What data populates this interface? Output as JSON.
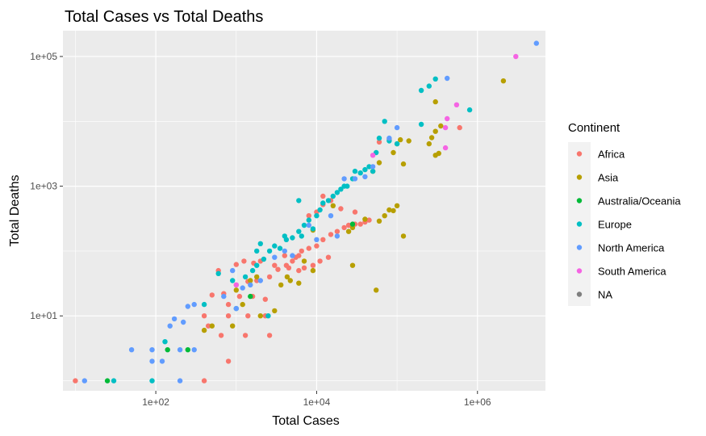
{
  "chart_data": {
    "type": "scatter",
    "title": "Total Cases vs Total Deaths",
    "xlabel": "Total Cases",
    "ylabel": "Total Deaths",
    "x_scale": "log10",
    "y_scale": "log10",
    "xlim": [
      7,
      7000000
    ],
    "ylim": [
      0.7,
      250000
    ],
    "x_ticks": [
      {
        "value": 100,
        "label": "1e+02"
      },
      {
        "value": 10000,
        "label": "1e+04"
      },
      {
        "value": 1000000,
        "label": "1e+06"
      }
    ],
    "y_ticks": [
      {
        "value": 10,
        "label": "1e+01"
      },
      {
        "value": 1000,
        "label": "1e+03"
      },
      {
        "value": 100000,
        "label": "1e+05"
      }
    ],
    "grid": true,
    "panel_background": "#ebebeb",
    "legend": {
      "title": "Continent",
      "position": "right",
      "entries": [
        {
          "label": "Africa",
          "color": "#F8766D"
        },
        {
          "label": "Asia",
          "color": "#B79F00"
        },
        {
          "label": "Australia/Oceania",
          "color": "#00BA38"
        },
        {
          "label": "Europe",
          "color": "#00BFC4"
        },
        {
          "label": "North America",
          "color": "#619CFF"
        },
        {
          "label": "South America",
          "color": "#F564E3"
        },
        {
          "label": "NA",
          "color": "#7F7F7F"
        }
      ]
    },
    "series": [
      {
        "name": "Africa",
        "color": "#F8766D",
        "points": [
          [
            10,
            1
          ],
          [
            400,
            1
          ],
          [
            800,
            2
          ],
          [
            650,
            5
          ],
          [
            1300,
            5
          ],
          [
            2600,
            5
          ],
          [
            400,
            10
          ],
          [
            450,
            7
          ],
          [
            800,
            10
          ],
          [
            1400,
            10
          ],
          [
            2300,
            10
          ],
          [
            500,
            21
          ],
          [
            800,
            15
          ],
          [
            1100,
            20
          ],
          [
            1600,
            20
          ],
          [
            2300,
            18
          ],
          [
            700,
            22
          ],
          [
            1000,
            30
          ],
          [
            1400,
            34
          ],
          [
            1800,
            35
          ],
          [
            2600,
            40
          ],
          [
            3300,
            52
          ],
          [
            4500,
            55
          ],
          [
            600,
            50
          ],
          [
            1000,
            62
          ],
          [
            1250,
            70
          ],
          [
            1650,
            65
          ],
          [
            2000,
            70
          ],
          [
            3000,
            60
          ],
          [
            4200,
            60
          ],
          [
            5000,
            70
          ],
          [
            5500,
            80
          ],
          [
            6000,
            50
          ],
          [
            7000,
            55
          ],
          [
            9000,
            60
          ],
          [
            4000,
            85
          ],
          [
            6000,
            85
          ],
          [
            6500,
            100
          ],
          [
            11000,
            70
          ],
          [
            14000,
            80
          ],
          [
            8000,
            110
          ],
          [
            10000,
            120
          ],
          [
            12000,
            150
          ],
          [
            15000,
            180
          ],
          [
            18000,
            200
          ],
          [
            22000,
            230
          ],
          [
            25000,
            250
          ],
          [
            30000,
            260
          ],
          [
            35000,
            260
          ],
          [
            40000,
            280
          ],
          [
            45000,
            300
          ],
          [
            8000,
            350
          ],
          [
            10000,
            400
          ],
          [
            12000,
            520
          ],
          [
            15000,
            600
          ],
          [
            20000,
            450
          ],
          [
            30000,
            400
          ],
          [
            12000,
            700
          ],
          [
            60000,
            4800
          ],
          [
            80000,
            5300
          ],
          [
            600000,
            8000
          ]
        ]
      },
      {
        "name": "Asia",
        "color": "#B79F00",
        "points": [
          [
            900,
            7
          ],
          [
            400,
            6
          ],
          [
            500,
            7
          ],
          [
            1200,
            15
          ],
          [
            2000,
            10
          ],
          [
            3000,
            12
          ],
          [
            1000,
            25
          ],
          [
            1500,
            35
          ],
          [
            1800,
            40
          ],
          [
            3600,
            30
          ],
          [
            4300,
            40
          ],
          [
            4700,
            35
          ],
          [
            6000,
            32
          ],
          [
            7000,
            70
          ],
          [
            9000,
            50
          ],
          [
            28000,
            60
          ],
          [
            16000,
            500
          ],
          [
            9000,
            210
          ],
          [
            25000,
            200
          ],
          [
            28000,
            230
          ],
          [
            40000,
            310
          ],
          [
            60000,
            290
          ],
          [
            70000,
            350
          ],
          [
            80000,
            430
          ],
          [
            90000,
            420
          ],
          [
            100000,
            500
          ],
          [
            120000,
            170
          ],
          [
            55000,
            25
          ],
          [
            50000,
            1700
          ],
          [
            60000,
            2300
          ],
          [
            90000,
            3300
          ],
          [
            100000,
            4500
          ],
          [
            110000,
            5200
          ],
          [
            140000,
            5000
          ],
          [
            120000,
            2200
          ],
          [
            300000,
            3000
          ],
          [
            330000,
            3200
          ],
          [
            250000,
            4500
          ],
          [
            270000,
            5600
          ],
          [
            300000,
            7000
          ],
          [
            350000,
            8500
          ],
          [
            300000,
            20000
          ],
          [
            2100000,
            42000
          ]
        ]
      },
      {
        "name": "Australia/Oceania",
        "color": "#00BA38",
        "points": [
          [
            25,
            1
          ],
          [
            140,
            3
          ],
          [
            250,
            3
          ],
          [
            1500,
            20
          ],
          [
            28000,
            260
          ]
        ]
      },
      {
        "name": "Europe",
        "color": "#00BFC4",
        "points": [
          [
            30,
            1
          ],
          [
            90,
            1
          ],
          [
            130,
            4
          ],
          [
            400,
            15
          ],
          [
            600,
            45
          ],
          [
            900,
            35
          ],
          [
            1300,
            40
          ],
          [
            1600,
            50
          ],
          [
            1800,
            60
          ],
          [
            2200,
            75
          ],
          [
            1800,
            100
          ],
          [
            2000,
            130
          ],
          [
            2600,
            100
          ],
          [
            3000,
            120
          ],
          [
            3500,
            110
          ],
          [
            4200,
            150
          ],
          [
            4000,
            170
          ],
          [
            5000,
            160
          ],
          [
            6000,
            200
          ],
          [
            6500,
            170
          ],
          [
            7000,
            250
          ],
          [
            8000,
            300
          ],
          [
            9000,
            220
          ],
          [
            10000,
            350
          ],
          [
            11000,
            430
          ],
          [
            12000,
            550
          ],
          [
            14000,
            600
          ],
          [
            16000,
            700
          ],
          [
            18000,
            800
          ],
          [
            20000,
            900
          ],
          [
            22000,
            1000
          ],
          [
            24000,
            1000
          ],
          [
            28000,
            1300
          ],
          [
            30000,
            1700
          ],
          [
            35000,
            1600
          ],
          [
            40000,
            1800
          ],
          [
            45000,
            2000
          ],
          [
            50000,
            1700
          ],
          [
            55000,
            3300
          ],
          [
            60000,
            5500
          ],
          [
            70000,
            10000
          ],
          [
            80000,
            5000
          ],
          [
            100000,
            4500
          ],
          [
            200000,
            9000
          ],
          [
            200000,
            30000
          ],
          [
            250000,
            35000
          ],
          [
            300000,
            45000
          ],
          [
            800000,
            15000
          ],
          [
            6000,
            600
          ],
          [
            2500,
            10
          ],
          [
            1000,
            13
          ]
        ]
      },
      {
        "name": "North America",
        "color": "#619CFF",
        "points": [
          [
            13,
            1
          ],
          [
            50,
            3
          ],
          [
            90,
            2
          ],
          [
            90,
            3
          ],
          [
            120,
            2
          ],
          [
            150,
            7
          ],
          [
            170,
            9
          ],
          [
            200,
            1
          ],
          [
            200,
            3
          ],
          [
            220,
            8
          ],
          [
            250,
            14
          ],
          [
            300,
            3
          ],
          [
            300,
            15
          ],
          [
            700,
            20
          ],
          [
            900,
            50
          ],
          [
            1000,
            13
          ],
          [
            1200,
            27
          ],
          [
            1500,
            30
          ],
          [
            2000,
            35
          ],
          [
            3000,
            80
          ],
          [
            4000,
            100
          ],
          [
            5000,
            85
          ],
          [
            8000,
            250
          ],
          [
            10000,
            150
          ],
          [
            15000,
            350
          ],
          [
            18000,
            170
          ],
          [
            22000,
            1300
          ],
          [
            30000,
            1300
          ],
          [
            40000,
            1400
          ],
          [
            50000,
            2000
          ],
          [
            80000,
            5500
          ],
          [
            100000,
            8000
          ],
          [
            420000,
            46000
          ],
          [
            5400000,
            160000
          ]
        ]
      },
      {
        "name": "South America",
        "color": "#F564E3",
        "points": [
          [
            1000,
            30
          ],
          [
            50000,
            3000
          ],
          [
            400000,
            3900
          ],
          [
            400000,
            8000
          ],
          [
            420000,
            11000
          ],
          [
            550000,
            18000
          ],
          [
            3000000,
            100000
          ]
        ]
      }
    ]
  }
}
